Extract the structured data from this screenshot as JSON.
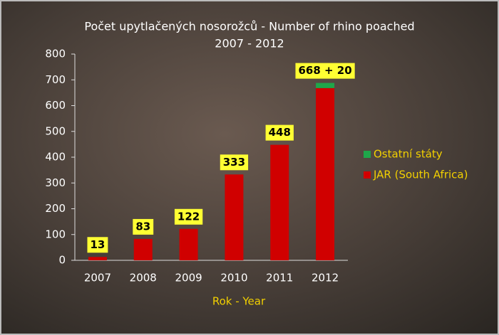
{
  "chart_data": {
    "type": "stacked-bar",
    "title": "Počet upytlačených nosorožců - Number of rhino poached",
    "subtitle": "2007 - 2012",
    "x_label": "Rok - Year",
    "categories": [
      "2007",
      "2008",
      "2009",
      "2010",
      "2011",
      "2012"
    ],
    "series": [
      {
        "name": "JAR (South Africa)",
        "color": "#d00000",
        "values": [
          13,
          83,
          122,
          333,
          448,
          668
        ],
        "value_labels": [
          "13",
          "83",
          "122",
          "333",
          "448",
          "668 + 20"
        ]
      },
      {
        "name": "Ostatní státy",
        "color": "#1fa64a",
        "values": [
          0,
          0,
          0,
          0,
          0,
          20
        ]
      }
    ],
    "ylim": [
      0,
      800
    ],
    "yticks": [
      0,
      100,
      200,
      300,
      400,
      500,
      600,
      700,
      800
    ],
    "grid": false
  }
}
